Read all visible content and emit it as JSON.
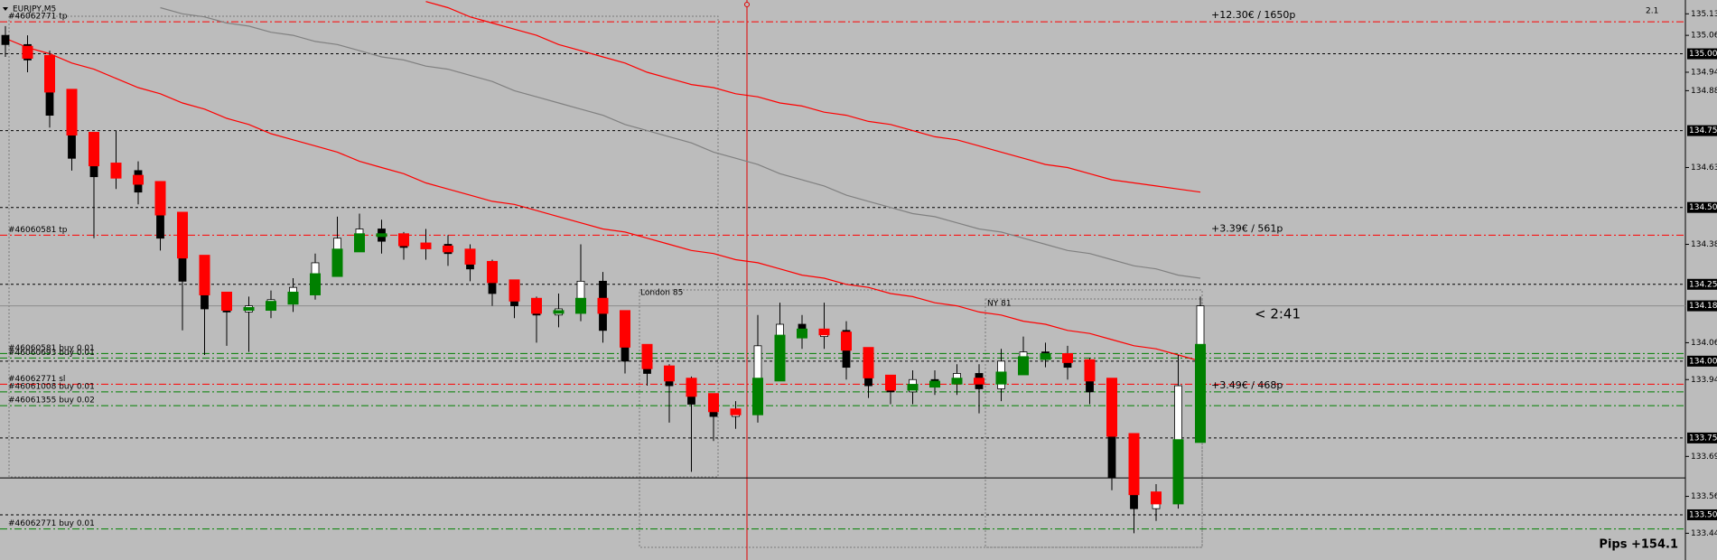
{
  "chart_data": {
    "type": "candlestick",
    "symbol": "EURJPY,M5",
    "corner_value": "2.1",
    "open": [
      135.06,
      135.03,
      134.98,
      134.8,
      134.66,
      134.6,
      134.62,
      134.55,
      134.4,
      134.26,
      134.17,
      134.16,
      134.18,
      134.2,
      134.24,
      134.32,
      134.4,
      134.43,
      134.39,
      134.37,
      134.38,
      134.35,
      134.3,
      134.22,
      134.18,
      134.15,
      134.17,
      134.26,
      134.1,
      134.0,
      133.96,
      133.92,
      133.86,
      133.82,
      133.84,
      134.05,
      134.12,
      134.08,
      134.1,
      133.98,
      133.92,
      133.9,
      133.94,
      133.93,
      133.96,
      133.91,
      134.0,
      134.03,
      134.02,
      133.98,
      133.9,
      133.62,
      133.52,
      133.56,
      133.92
    ],
    "high": [
      135.09,
      135.06,
      135.01,
      134.83,
      134.69,
      134.75,
      134.65,
      134.58,
      134.43,
      134.29,
      134.2,
      134.21,
      134.23,
      134.27,
      134.35,
      134.47,
      134.48,
      134.46,
      134.42,
      134.43,
      134.41,
      134.38,
      134.33,
      134.25,
      134.21,
      134.22,
      134.38,
      134.29,
      134.13,
      134.03,
      133.99,
      133.95,
      133.89,
      133.87,
      134.15,
      134.19,
      134.15,
      134.19,
      134.13,
      134.01,
      133.95,
      133.97,
      133.97,
      133.99,
      133.99,
      134.04,
      134.08,
      134.06,
      134.05,
      134.01,
      133.93,
      133.65,
      133.6,
      134.02,
      134.21
    ],
    "low": [
      134.99,
      134.94,
      134.76,
      134.62,
      134.4,
      134.56,
      134.51,
      134.36,
      134.1,
      134.02,
      134.05,
      134.03,
      134.14,
      134.16,
      134.2,
      134.28,
      134.36,
      134.35,
      134.33,
      134.33,
      134.31,
      134.26,
      134.18,
      134.14,
      134.06,
      134.11,
      134.13,
      134.06,
      133.96,
      133.92,
      133.8,
      133.64,
      133.74,
      133.78,
      133.8,
      134.01,
      134.04,
      134.04,
      133.94,
      133.88,
      133.86,
      133.86,
      133.89,
      133.89,
      133.83,
      133.87,
      133.96,
      133.98,
      133.94,
      133.86,
      133.58,
      133.44,
      133.48,
      133.52,
      133.88
    ],
    "close": [
      135.03,
      134.98,
      134.8,
      134.66,
      134.6,
      134.62,
      134.55,
      134.4,
      134.26,
      134.17,
      134.16,
      134.18,
      134.2,
      134.24,
      134.32,
      134.4,
      134.43,
      134.39,
      134.37,
      134.38,
      134.35,
      134.3,
      134.22,
      134.18,
      134.15,
      134.17,
      134.26,
      134.1,
      134.0,
      133.96,
      133.92,
      133.86,
      133.82,
      133.84,
      134.05,
      134.12,
      134.08,
      134.1,
      133.98,
      133.92,
      133.9,
      133.94,
      133.93,
      133.96,
      133.91,
      134.0,
      134.03,
      134.02,
      133.98,
      133.9,
      133.62,
      133.52,
      133.56,
      133.92,
      134.18
    ],
    "up_color": "#ffffff",
    "down_color": "#000000",
    "signal": {
      "values": [
        135.02,
        134.99,
        134.88,
        134.74,
        134.64,
        134.6,
        134.58,
        134.48,
        134.34,
        134.22,
        134.17,
        134.17,
        134.19,
        134.22,
        134.28,
        134.36,
        134.41,
        134.41,
        134.38,
        134.37,
        134.36,
        134.32,
        134.26,
        134.2,
        134.16,
        134.16,
        134.2,
        134.16,
        134.05,
        133.98,
        133.94,
        133.89,
        133.84,
        133.83,
        133.94,
        134.08,
        134.1,
        134.09,
        134.04,
        133.95,
        133.91,
        133.92,
        133.93,
        133.94,
        133.93,
        133.96,
        134.01,
        134.02,
        134.0,
        133.94,
        133.76,
        133.57,
        133.54,
        133.74,
        134.05
      ],
      "up_color": "#008000",
      "down_color": "#ff0000"
    },
    "moving_averages": [
      {
        "color": "#ff0000",
        "values": [
          135.05,
          135.02,
          135.0,
          134.97,
          134.95,
          134.92,
          134.89,
          134.87,
          134.84,
          134.82,
          134.79,
          134.77,
          134.74,
          134.72,
          134.7,
          134.68,
          134.65,
          134.63,
          134.61,
          134.58,
          134.56,
          134.54,
          134.52,
          134.51,
          134.49,
          134.47,
          134.45,
          134.43,
          134.42,
          134.4,
          134.38,
          134.36,
          134.35,
          134.33,
          134.32,
          134.3,
          134.28,
          134.27,
          134.25,
          134.24,
          134.22,
          134.21,
          134.19,
          134.18,
          134.16,
          134.15,
          134.13,
          134.12,
          134.1,
          134.09,
          134.07,
          134.05,
          134.04,
          134.02,
          134.0
        ]
      },
      {
        "color": "#ff0000",
        "values": [
          null,
          null,
          null,
          null,
          null,
          null,
          null,
          null,
          null,
          null,
          null,
          null,
          null,
          null,
          null,
          null,
          null,
          null,
          null,
          135.17,
          135.15,
          135.12,
          135.1,
          135.08,
          135.06,
          135.03,
          135.01,
          134.99,
          134.97,
          134.94,
          134.92,
          134.9,
          134.89,
          134.87,
          134.86,
          134.84,
          134.83,
          134.81,
          134.8,
          134.78,
          134.77,
          134.75,
          134.73,
          134.72,
          134.7,
          134.68,
          134.66,
          134.64,
          134.63,
          134.61,
          134.59,
          134.58,
          134.57,
          134.56,
          134.55
        ]
      },
      {
        "color": "#808080",
        "values": [
          null,
          null,
          null,
          null,
          null,
          null,
          null,
          135.15,
          135.13,
          135.12,
          135.1,
          135.09,
          135.07,
          135.06,
          135.04,
          135.03,
          135.01,
          134.99,
          134.98,
          134.96,
          134.95,
          134.93,
          134.91,
          134.88,
          134.86,
          134.84,
          134.82,
          134.8,
          134.77,
          134.75,
          134.73,
          134.71,
          134.68,
          134.66,
          134.64,
          134.61,
          134.59,
          134.57,
          134.54,
          134.52,
          134.5,
          134.48,
          134.47,
          134.45,
          134.43,
          134.42,
          134.4,
          134.38,
          134.36,
          134.35,
          134.33,
          134.31,
          134.3,
          134.28,
          134.27
        ]
      }
    ],
    "ylim": [
      133.353,
      135.175
    ],
    "yticks": [
      {
        "value": 135.13,
        "label": "135.13"
      },
      {
        "value": 135.06,
        "label": "135.06"
      },
      {
        "value": 134.94,
        "label": "134.94"
      },
      {
        "value": 134.88,
        "label": "134.88"
      },
      {
        "value": 134.63,
        "label": "134.63"
      },
      {
        "value": 134.38,
        "label": "134.38"
      },
      {
        "value": 134.06,
        "label": "134.06"
      },
      {
        "value": 133.94,
        "label": "133.94"
      },
      {
        "value": 133.69,
        "label": "133.69"
      },
      {
        "value": 133.56,
        "label": "133.56"
      },
      {
        "value": 133.44,
        "label": "133.44"
      }
    ],
    "levels": [
      {
        "value": 135,
        "label": "135.00"
      },
      {
        "value": 134.75,
        "label": "134.75"
      },
      {
        "value": 134.5,
        "label": "134.50"
      },
      {
        "value": 134.25,
        "label": "134.25"
      },
      {
        "value": 134,
        "label": "134.00"
      },
      {
        "value": 133.75,
        "label": "133.75"
      },
      {
        "value": 133.5,
        "label": "133.50"
      }
    ],
    "current_price": {
      "value": 134.18,
      "label": "134.18"
    },
    "orders": [
      {
        "value": 135.104,
        "label": "#46062771 tp",
        "color": "#ff0000",
        "profit": "+12.30€ / 1650p"
      },
      {
        "value": 134.41,
        "label": "#46060581 tp",
        "color": "#ff0000",
        "profit": "+3.39€ / 561p"
      },
      {
        "value": 134.025,
        "label": "#46060581 buy 0.01",
        "color": "#008000"
      },
      {
        "value": 134.01,
        "label": "#46060693 buy 0.01",
        "color": "#008000"
      },
      {
        "value": 133.925,
        "label": "#46062771 sl",
        "color": "#ff0000"
      },
      {
        "value": 133.9,
        "label": "#46061008 buy 0.01",
        "color": "#008000",
        "profit": "+3.49€ / 468p"
      },
      {
        "value": 133.855,
        "label": "#46061355 buy 0.02",
        "color": "#008000"
      },
      {
        "value": 133.454,
        "label": "#46062771 buy 0.01",
        "color": "#008000"
      }
    ],
    "hline": 133.62,
    "sessions": [
      "London 85",
      "NY 81"
    ],
    "countdown": "< 2:41",
    "pips": "Pips +154.1"
  }
}
